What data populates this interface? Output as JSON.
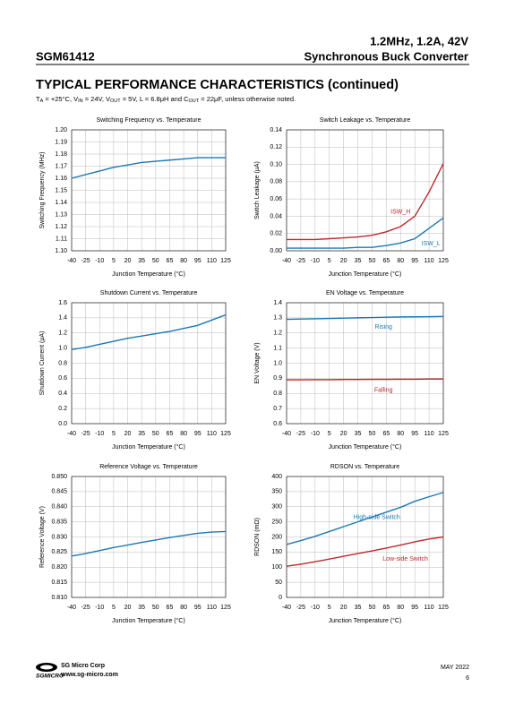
{
  "header": {
    "part": "SGM61412",
    "spec": "1.2MHz, 1.2A, 42V",
    "product": "Synchronous Buck Converter"
  },
  "section_title": "TYPICAL PERFORMANCE CHARACTERISTICS (continued)",
  "conditions": [
    "T",
    "A",
    " = +25°C, V",
    "IN",
    " = 24V, V",
    "OUT",
    " = 5V, L = 6.8μH and C",
    "OUT",
    " = 22μF, unless otherwise noted."
  ],
  "chart_data": [
    {
      "type": "line",
      "title": "Switching Frequency vs. Temperature",
      "x_label": "Junction Temperature (°C)",
      "y_label": "Switching Frequency (MHz)",
      "x": [
        -40,
        -25,
        -10,
        5,
        20,
        35,
        50,
        65,
        80,
        95,
        110,
        125
      ],
      "xlim": [
        -40,
        125
      ],
      "xticks": [
        -40,
        -25,
        -10,
        5,
        20,
        35,
        50,
        65,
        80,
        95,
        110,
        125
      ],
      "ylim": [
        1.1,
        1.2
      ],
      "yticks": [
        {
          "value": 1.1,
          "label": "1.10"
        },
        1.11,
        1.12,
        1.13,
        1.14,
        1.15,
        1.16,
        1.17,
        1.18,
        1.19,
        {
          "value": 1.2,
          "label": "1.20"
        }
      ],
      "grid": true,
      "series": [
        {
          "name": "",
          "color": "#1b78b4",
          "values": [
            1.16,
            1.163,
            1.166,
            1.169,
            1.171,
            1.173,
            1.174,
            1.175,
            1.176,
            1.177,
            1.177,
            1.177
          ]
        }
      ]
    },
    {
      "type": "line",
      "title": "Switch Leakage vs. Temperature",
      "x_label": "Junction Temperature (°C)",
      "y_label": "Switch Leakage (μA)",
      "x": [
        -40,
        -25,
        -10,
        5,
        20,
        35,
        50,
        65,
        80,
        95,
        110,
        125
      ],
      "xlim": [
        -40,
        125
      ],
      "xticks": [
        -40,
        -25,
        -10,
        5,
        20,
        35,
        50,
        65,
        80,
        95,
        110,
        125
      ],
      "ylim": [
        0,
        0.14
      ],
      "yticks": [
        {
          "value": 0,
          "label": "0.00"
        },
        0.02,
        0.04,
        0.06,
        0.08,
        {
          "value": 0.1,
          "label": "0.10"
        },
        0.12,
        0.14
      ],
      "grid": true,
      "series": [
        {
          "name": "ISW_H",
          "color": "#c0272d",
          "values": [
            0.013,
            0.013,
            0.013,
            0.014,
            0.015,
            0.016,
            0.018,
            0.022,
            0.028,
            0.04,
            0.068,
            0.101
          ]
        },
        {
          "name": "ISW_L",
          "color": "#1b78b4",
          "values": [
            0.003,
            0.003,
            0.003,
            0.003,
            0.003,
            0.004,
            0.004,
            0.006,
            0.009,
            0.014,
            0.026,
            0.038
          ]
        }
      ]
    },
    {
      "type": "line",
      "title": "Shutdown Current vs. Temperature",
      "x_label": "Junction Temperature (°C)",
      "y_label": "Shutdown Current (μA)",
      "x": [
        -40,
        -25,
        -10,
        5,
        20,
        35,
        50,
        65,
        80,
        95,
        110,
        125
      ],
      "xlim": [
        -40,
        125
      ],
      "xticks": [
        -40,
        -25,
        -10,
        5,
        20,
        35,
        50,
        65,
        80,
        95,
        110,
        125
      ],
      "ylim": [
        0,
        1.6
      ],
      "yticks": [
        {
          "value": 0,
          "label": "0.0"
        },
        0.2,
        0.4,
        0.6,
        0.8,
        {
          "value": 1,
          "label": "1.0"
        },
        1.2,
        1.4,
        1.6
      ],
      "grid": true,
      "series": [
        {
          "name": "",
          "color": "#1b78b4",
          "values": [
            0.98,
            1.01,
            1.05,
            1.09,
            1.13,
            1.16,
            1.19,
            1.22,
            1.26,
            1.3,
            1.37,
            1.44
          ]
        }
      ]
    },
    {
      "type": "line",
      "title": "EN Voltage vs. Temperature",
      "x_label": "Junction Temperature (°C)",
      "y_label": "EN Voltage (V)",
      "x": [
        -40,
        -25,
        -10,
        5,
        20,
        35,
        50,
        65,
        80,
        95,
        110,
        125
      ],
      "xlim": [
        -40,
        125
      ],
      "xticks": [
        -40,
        -25,
        -10,
        5,
        20,
        35,
        50,
        65,
        80,
        95,
        110,
        125
      ],
      "ylim": [
        0.6,
        1.4
      ],
      "yticks": [
        0.6,
        0.7,
        0.8,
        0.9,
        {
          "value": 1,
          "label": "1.0"
        },
        1.1,
        1.2,
        1.3,
        1.4
      ],
      "grid": true,
      "series": [
        {
          "name": "Rising",
          "color": "#1b78b4",
          "values": [
            1.29,
            1.292,
            1.294,
            1.296,
            1.298,
            1.3,
            1.302,
            1.304,
            1.306,
            1.307,
            1.308,
            1.309
          ]
        },
        {
          "name": "Falling",
          "color": "#c0272d",
          "values": [
            0.89,
            0.89,
            0.891,
            0.891,
            0.892,
            0.892,
            0.893,
            0.893,
            0.894,
            0.894,
            0.895,
            0.895
          ]
        }
      ]
    },
    {
      "type": "line",
      "title": "Reference Voltage vs. Temperature",
      "x_label": "Junction Temperature (°C)",
      "y_label": "Reference Voltage (V)",
      "x": [
        -40,
        -25,
        -10,
        5,
        20,
        35,
        50,
        65,
        80,
        95,
        110,
        125
      ],
      "xlim": [
        -40,
        125
      ],
      "xticks": [
        -40,
        -25,
        -10,
        5,
        20,
        35,
        50,
        65,
        80,
        95,
        110,
        125
      ],
      "ylim": [
        0.81,
        0.85
      ],
      "yticks": [
        {
          "value": 0.81,
          "label": "0.810"
        },
        0.815,
        {
          "value": 0.82,
          "label": "0.820"
        },
        0.825,
        {
          "value": 0.83,
          "label": "0.830"
        },
        0.835,
        {
          "value": 0.84,
          "label": "0.840"
        },
        0.845,
        {
          "value": 0.85,
          "label": "0.850"
        }
      ],
      "grid": true,
      "series": [
        {
          "name": "",
          "color": "#1b78b4",
          "values": [
            0.8237,
            0.8245,
            0.8255,
            0.8265,
            0.8273,
            0.8282,
            0.829,
            0.8298,
            0.8305,
            0.8312,
            0.8316,
            0.8318
          ]
        }
      ]
    },
    {
      "type": "line",
      "title": "RDSON vs. Temperature",
      "x_label": "Junction Temperature (°C)",
      "y_label": "RDSON (mΩ)",
      "x": [
        -40,
        -25,
        -10,
        5,
        20,
        35,
        50,
        65,
        80,
        95,
        110,
        125
      ],
      "xlim": [
        -40,
        125
      ],
      "xticks": [
        -40,
        -25,
        -10,
        5,
        20,
        35,
        50,
        65,
        80,
        95,
        110,
        125
      ],
      "ylim": [
        0,
        400
      ],
      "yticks": [
        0,
        50,
        100,
        150,
        200,
        250,
        300,
        350,
        400
      ],
      "grid": true,
      "series": [
        {
          "name": "High-side Switch",
          "color": "#1b78b4",
          "values": [
            175,
            188,
            202,
            218,
            234,
            250,
            266,
            282,
            298,
            318,
            333,
            347
          ]
        },
        {
          "name": "Low-side Switch",
          "color": "#c0272d",
          "values": [
            103,
            110,
            118,
            127,
            136,
            145,
            154,
            163,
            173,
            184,
            193,
            200
          ]
        }
      ]
    }
  ],
  "footer": {
    "company": "SG Micro Corp",
    "website": "www.sg-micro.com",
    "logo": "SGMICRO",
    "date": "MAY 2022",
    "page": "6"
  }
}
